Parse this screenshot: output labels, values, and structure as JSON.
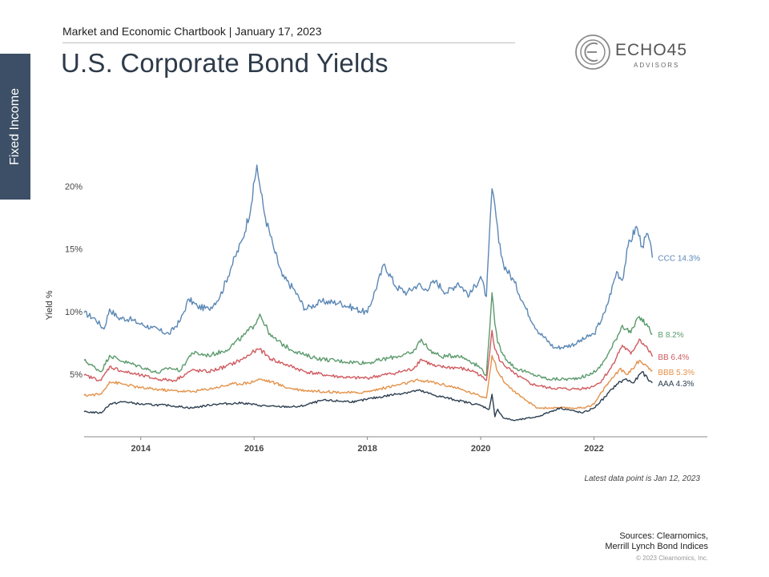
{
  "side_tab": "Fixed Income",
  "header": {
    "subtitle": "Market and Economic Chartbook | January 17, 2023",
    "title": "U.S. Corporate Bond Yields"
  },
  "logo": {
    "name": "ECHO45",
    "tagline": "ADVISORS"
  },
  "footer": {
    "note": "Latest data point is Jan 12, 2023",
    "sources_line1": "Sources: Clearnomics,",
    "sources_line2": "Merrill Lynch Bond Indices",
    "copyright": "© 2023 Clearnomics, Inc."
  },
  "colors": {
    "CCC": "#5b87b5",
    "B": "#5b9a6c",
    "BB": "#d05b5f",
    "BBB": "#e3924a",
    "AAA": "#2d3e50",
    "tab": "#3d4f66"
  },
  "chart_data": {
    "type": "line",
    "title": "U.S. Corporate Bond Yields",
    "xlabel": "",
    "ylabel": "Yield %",
    "xlim": [
      2013.0,
      2024.0
    ],
    "ylim": [
      0,
      24
    ],
    "y_ticks": [
      5,
      10,
      15,
      20
    ],
    "y_tick_labels": [
      "5%",
      "10%",
      "15%",
      "20%"
    ],
    "x_ticks": [
      2014,
      2016,
      2018,
      2020,
      2022
    ],
    "x_tick_labels": [
      "2014",
      "2016",
      "2018",
      "2020",
      "2022"
    ],
    "grid": false,
    "series": [
      {
        "name": "CCC",
        "end_label": "CCC 14.3%",
        "color": "#5b87b5",
        "x": [
          2013.0,
          2013.2,
          2013.35,
          2013.45,
          2013.6,
          2013.8,
          2014.0,
          2014.2,
          2014.5,
          2014.7,
          2014.85,
          2015.0,
          2015.2,
          2015.4,
          2015.6,
          2015.8,
          2015.95,
          2016.05,
          2016.12,
          2016.2,
          2016.35,
          2016.5,
          2016.7,
          2016.9,
          2017.0,
          2017.2,
          2017.5,
          2017.8,
          2018.0,
          2018.3,
          2018.5,
          2018.7,
          2018.9,
          2019.0,
          2019.2,
          2019.4,
          2019.6,
          2019.8,
          2020.0,
          2020.1,
          2020.2,
          2020.25,
          2020.32,
          2020.4,
          2020.6,
          2020.8,
          2021.0,
          2021.3,
          2021.5,
          2021.7,
          2021.9,
          2022.0,
          2022.2,
          2022.4,
          2022.5,
          2022.6,
          2022.75,
          2022.85,
          2022.95,
          2023.03
        ],
        "y": [
          9.9,
          9.4,
          8.6,
          10.2,
          9.5,
          9.4,
          9.0,
          8.7,
          8.2,
          9.3,
          11.0,
          10.4,
          10.2,
          11.2,
          13.6,
          15.8,
          18.5,
          21.7,
          19.5,
          17.5,
          15.0,
          12.8,
          11.8,
          10.2,
          10.4,
          10.8,
          10.7,
          10.2,
          9.9,
          13.8,
          12.0,
          11.5,
          12.2,
          11.7,
          12.4,
          11.5,
          12.3,
          11.3,
          12.8,
          11.2,
          19.8,
          18.5,
          15.5,
          13.8,
          12.3,
          10.2,
          8.5,
          7.1,
          7.2,
          7.5,
          8.0,
          8.2,
          10.0,
          13.2,
          12.5,
          15.2,
          16.8,
          15.2,
          16.2,
          14.3
        ]
      },
      {
        "name": "B",
        "end_label": "B 8.2%",
        "color": "#5b9a6c",
        "x": [
          2013.0,
          2013.3,
          2013.45,
          2013.7,
          2014.0,
          2014.3,
          2014.5,
          2014.7,
          2014.9,
          2015.2,
          2015.5,
          2015.8,
          2016.0,
          2016.1,
          2016.3,
          2016.6,
          2016.9,
          2017.2,
          2017.6,
          2018.0,
          2018.5,
          2018.8,
          2018.95,
          2019.1,
          2019.3,
          2019.6,
          2019.8,
          2020.0,
          2020.1,
          2020.2,
          2020.25,
          2020.3,
          2020.4,
          2020.6,
          2020.9,
          2021.2,
          2021.6,
          2021.9,
          2022.1,
          2022.3,
          2022.5,
          2022.65,
          2022.8,
          2022.95,
          2023.03
        ],
        "y": [
          6.1,
          5.2,
          6.5,
          6.0,
          5.6,
          5.1,
          5.5,
          5.3,
          6.7,
          6.5,
          6.9,
          8.0,
          8.9,
          9.8,
          8.0,
          7.1,
          6.5,
          6.2,
          6.0,
          5.9,
          6.4,
          6.7,
          7.8,
          6.9,
          6.4,
          6.5,
          6.1,
          5.5,
          4.9,
          11.5,
          9.0,
          7.5,
          6.5,
          5.5,
          5.0,
          4.6,
          4.6,
          4.9,
          5.5,
          7.0,
          8.9,
          8.3,
          9.6,
          8.8,
          8.2
        ]
      },
      {
        "name": "BB",
        "end_label": "BB 6.4%",
        "color": "#d05b5f",
        "x": [
          2013.0,
          2013.3,
          2013.45,
          2013.7,
          2014.0,
          2014.3,
          2014.6,
          2014.9,
          2015.2,
          2015.5,
          2015.8,
          2016.0,
          2016.1,
          2016.3,
          2016.6,
          2016.9,
          2017.3,
          2017.7,
          2018.0,
          2018.5,
          2018.8,
          2018.95,
          2019.2,
          2019.6,
          2019.9,
          2020.1,
          2020.2,
          2020.25,
          2020.35,
          2020.6,
          2020.9,
          2021.2,
          2021.6,
          2021.9,
          2022.1,
          2022.3,
          2022.5,
          2022.65,
          2022.8,
          2022.95,
          2023.03
        ],
        "y": [
          4.9,
          4.5,
          5.6,
          5.2,
          4.9,
          4.6,
          4.5,
          5.3,
          5.2,
          5.6,
          6.2,
          6.8,
          7.0,
          6.2,
          5.7,
          5.2,
          4.9,
          4.7,
          4.7,
          5.1,
          5.4,
          6.2,
          5.6,
          5.5,
          5.2,
          4.5,
          8.5,
          7.0,
          6.0,
          5.0,
          4.2,
          3.9,
          3.8,
          3.9,
          4.3,
          5.5,
          7.3,
          6.6,
          7.8,
          7.0,
          6.4
        ]
      },
      {
        "name": "BBB",
        "end_label": "BBB 5.3%",
        "color": "#e3924a",
        "x": [
          2013.0,
          2013.3,
          2013.45,
          2013.7,
          2014.0,
          2014.5,
          2014.9,
          2015.3,
          2015.6,
          2015.9,
          2016.1,
          2016.3,
          2016.6,
          2016.9,
          2017.3,
          2017.8,
          2018.0,
          2018.5,
          2018.9,
          2019.1,
          2019.5,
          2019.9,
          2020.1,
          2020.2,
          2020.3,
          2020.45,
          2020.7,
          2021.0,
          2021.4,
          2021.8,
          2022.0,
          2022.2,
          2022.45,
          2022.6,
          2022.8,
          2022.95,
          2023.03
        ],
        "y": [
          3.3,
          3.4,
          4.4,
          4.2,
          3.9,
          3.7,
          3.6,
          3.9,
          4.2,
          4.3,
          4.6,
          4.4,
          3.9,
          3.7,
          3.6,
          3.5,
          3.6,
          4.1,
          4.5,
          4.4,
          4.0,
          3.4,
          3.1,
          6.5,
          5.2,
          4.2,
          3.2,
          2.3,
          2.3,
          2.3,
          2.6,
          4.0,
          5.4,
          5.0,
          6.1,
          5.6,
          5.3
        ]
      },
      {
        "name": "AAA",
        "end_label": "AAA 4.3%",
        "color": "#2d3e50",
        "x": [
          2013.0,
          2013.3,
          2013.45,
          2013.7,
          2014.0,
          2014.5,
          2014.9,
          2015.3,
          2015.8,
          2016.1,
          2016.4,
          2016.8,
          2017.2,
          2017.8,
          2018.0,
          2018.5,
          2018.9,
          2019.2,
          2019.6,
          2020.0,
          2020.15,
          2020.2,
          2020.25,
          2020.3,
          2020.4,
          2020.6,
          2021.0,
          2021.4,
          2021.8,
          2022.0,
          2022.2,
          2022.4,
          2022.55,
          2022.7,
          2022.85,
          2022.95,
          2023.03
        ],
        "y": [
          2.0,
          1.9,
          2.6,
          2.8,
          2.6,
          2.5,
          2.3,
          2.6,
          2.7,
          2.5,
          2.4,
          2.4,
          2.9,
          2.8,
          3.0,
          3.4,
          3.7,
          3.3,
          2.9,
          2.5,
          2.2,
          3.4,
          1.6,
          2.2,
          1.5,
          1.3,
          1.6,
          2.3,
          1.9,
          2.3,
          3.2,
          4.2,
          4.6,
          4.3,
          5.2,
          4.6,
          4.3
        ]
      }
    ]
  }
}
